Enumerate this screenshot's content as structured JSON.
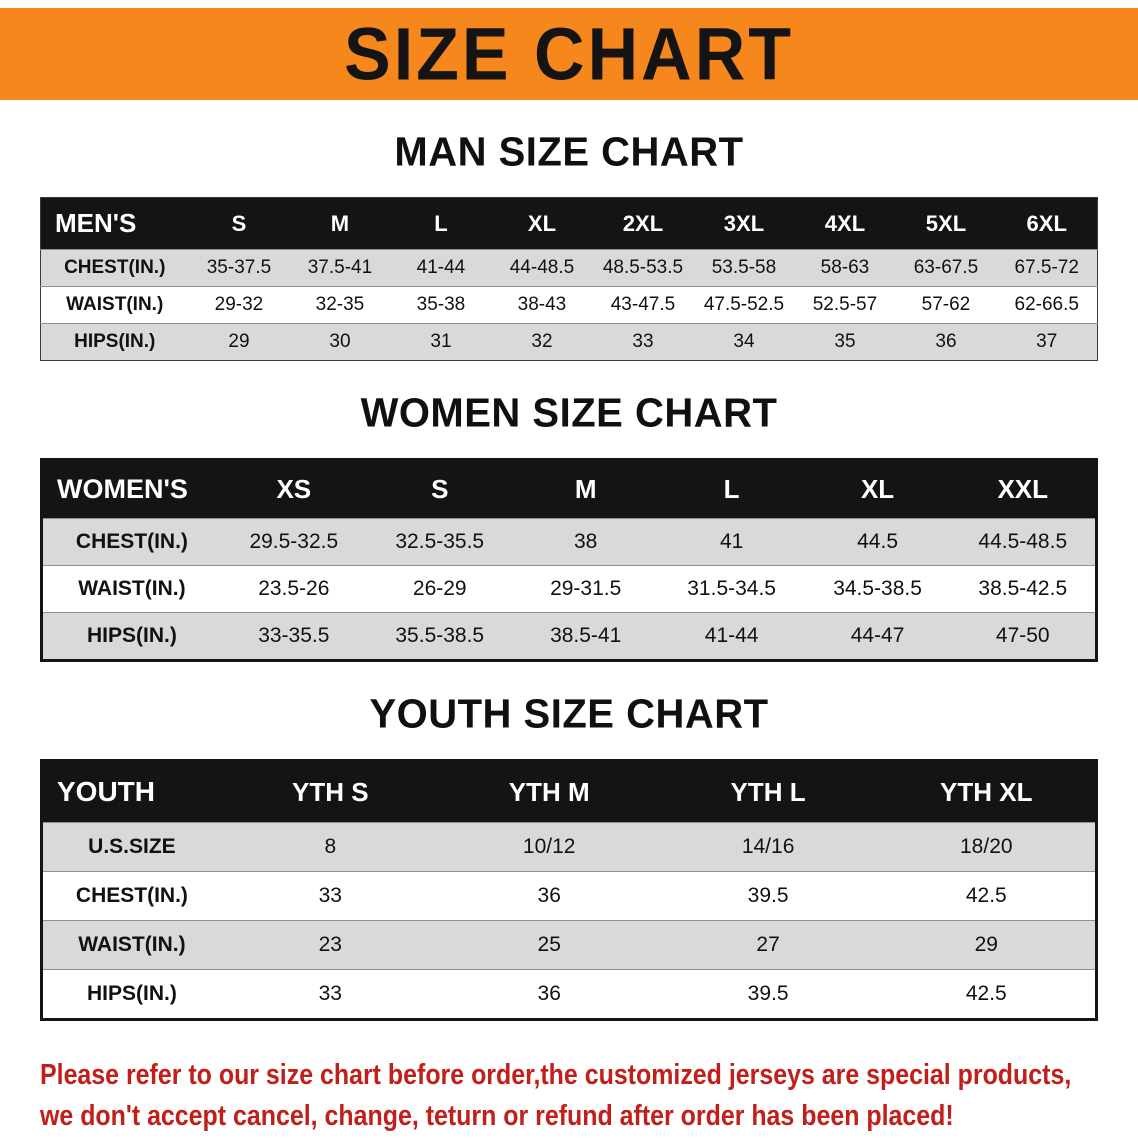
{
  "banner": {
    "title": "SIZE CHART"
  },
  "colors": {
    "banner_orange": "#F6871D",
    "table_header_black": "#141414",
    "row_shade_gray": "#D9D9D9",
    "disclaimer_red": "#C01F1A"
  },
  "sections": [
    {
      "heading": "MAN SIZE CHART",
      "table": {
        "header": [
          "MEN'S",
          "S",
          "M",
          "L",
          "XL",
          "2XL",
          "3XL",
          "4XL",
          "5XL",
          "6XL"
        ],
        "rows": [
          {
            "label": "CHEST(IN.)",
            "cells": [
              "35-37.5",
              "37.5-41",
              "41-44",
              "44-48.5",
              "48.5-53.5",
              "53.5-58",
              "58-63",
              "63-67.5",
              "67.5-72"
            ]
          },
          {
            "label": "WAIST(IN.)",
            "cells": [
              "29-32",
              "32-35",
              "35-38",
              "38-43",
              "43-47.5",
              "47.5-52.5",
              "52.5-57",
              "57-62",
              "62-66.5"
            ]
          },
          {
            "label": "HIPS(IN.)",
            "cells": [
              "29",
              "30",
              "31",
              "32",
              "33",
              "34",
              "35",
              "36",
              "37"
            ]
          }
        ]
      }
    },
    {
      "heading": "WOMEN SIZE CHART",
      "table": {
        "header": [
          "WOMEN'S",
          "XS",
          "S",
          "M",
          "L",
          "XL",
          "XXL"
        ],
        "rows": [
          {
            "label": "CHEST(IN.)",
            "cells": [
              "29.5-32.5",
              "32.5-35.5",
              "38",
              "41",
              "44.5",
              "44.5-48.5"
            ]
          },
          {
            "label": "WAIST(IN.)",
            "cells": [
              "23.5-26",
              "26-29",
              "29-31.5",
              "31.5-34.5",
              "34.5-38.5",
              "38.5-42.5"
            ]
          },
          {
            "label": "HIPS(IN.)",
            "cells": [
              "33-35.5",
              "35.5-38.5",
              "38.5-41",
              "41-44",
              "44-47",
              "47-50"
            ]
          }
        ]
      }
    },
    {
      "heading": "YOUTH SIZE CHART",
      "table": {
        "header": [
          "YOUTH",
          "YTH S",
          "YTH M",
          "YTH L",
          "YTH XL"
        ],
        "rows": [
          {
            "label": "U.S.SIZE",
            "cells": [
              "8",
              "10/12",
              "14/16",
              "18/20"
            ]
          },
          {
            "label": "CHEST(IN.)",
            "cells": [
              "33",
              "36",
              "39.5",
              "42.5"
            ]
          },
          {
            "label": "WAIST(IN.)",
            "cells": [
              "23",
              "25",
              "27",
              "29"
            ]
          },
          {
            "label": "HIPS(IN.)",
            "cells": [
              "33",
              "36",
              "39.5",
              "42.5"
            ]
          }
        ]
      }
    }
  ],
  "disclaimer": {
    "lines": [
      "Please refer to our size chart before order,the customized jerseys are special products,",
      "we don't accept cancel, change, teturn or refund after order has been placed!"
    ]
  }
}
